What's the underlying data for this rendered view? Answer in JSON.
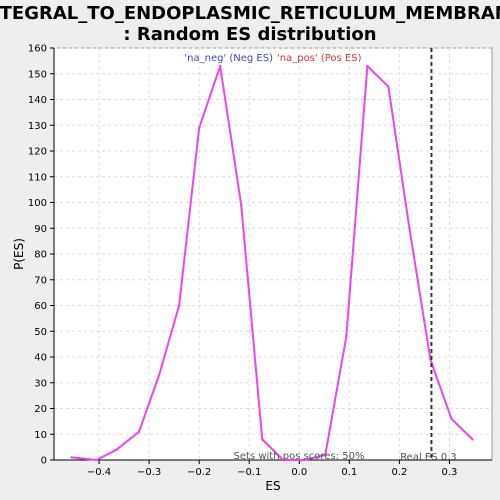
{
  "chart_data": {
    "type": "line",
    "title_line1": "INTEGRAL_TO_ENDOPLASMIC_RETICULUM_MEMBRANE",
    "title_line2": ": Random ES distribution",
    "xlabel": "ES",
    "ylabel": "P(ES)",
    "xlim": [
      -0.49,
      0.385
    ],
    "ylim": [
      0,
      160
    ],
    "x_ticks": [
      -0.4,
      -0.3,
      -0.2,
      -0.1,
      0.0,
      0.1,
      0.2,
      0.3
    ],
    "x_tick_labels": [
      "−0.4",
      "−0.3",
      "−0.2",
      "−0.1",
      "0.0",
      "0.1",
      "0.2",
      "0.3"
    ],
    "y_ticks": [
      0,
      10,
      20,
      30,
      40,
      50,
      60,
      70,
      80,
      90,
      100,
      110,
      120,
      130,
      140,
      150,
      160
    ],
    "grid": true,
    "legend": [
      {
        "label": "'na_neg' (Neg ES)",
        "color": "#4444cc"
      },
      {
        "label": "'na_pos' (Pos ES)",
        "color": "#dd3333"
      }
    ],
    "series": [
      {
        "color": "#ee44ee",
        "x": [
          -0.455,
          -0.405,
          -0.365,
          -0.32,
          -0.28,
          -0.24,
          -0.2,
          -0.158,
          -0.116,
          -0.074,
          -0.032,
          0.01,
          0.052,
          0.094,
          0.136,
          0.178,
          0.22,
          0.262,
          0.304,
          0.346
        ],
        "y": [
          1,
          0,
          4,
          11,
          33,
          60,
          129,
          153,
          99,
          8,
          0,
          0,
          2,
          48,
          153,
          145,
          90,
          39,
          16,
          8
        ]
      }
    ],
    "real_es": {
      "x": 0.264,
      "label": "Real ES 0.3",
      "color": "#333333"
    },
    "annotation": "Sets with pos scores: 50%"
  }
}
